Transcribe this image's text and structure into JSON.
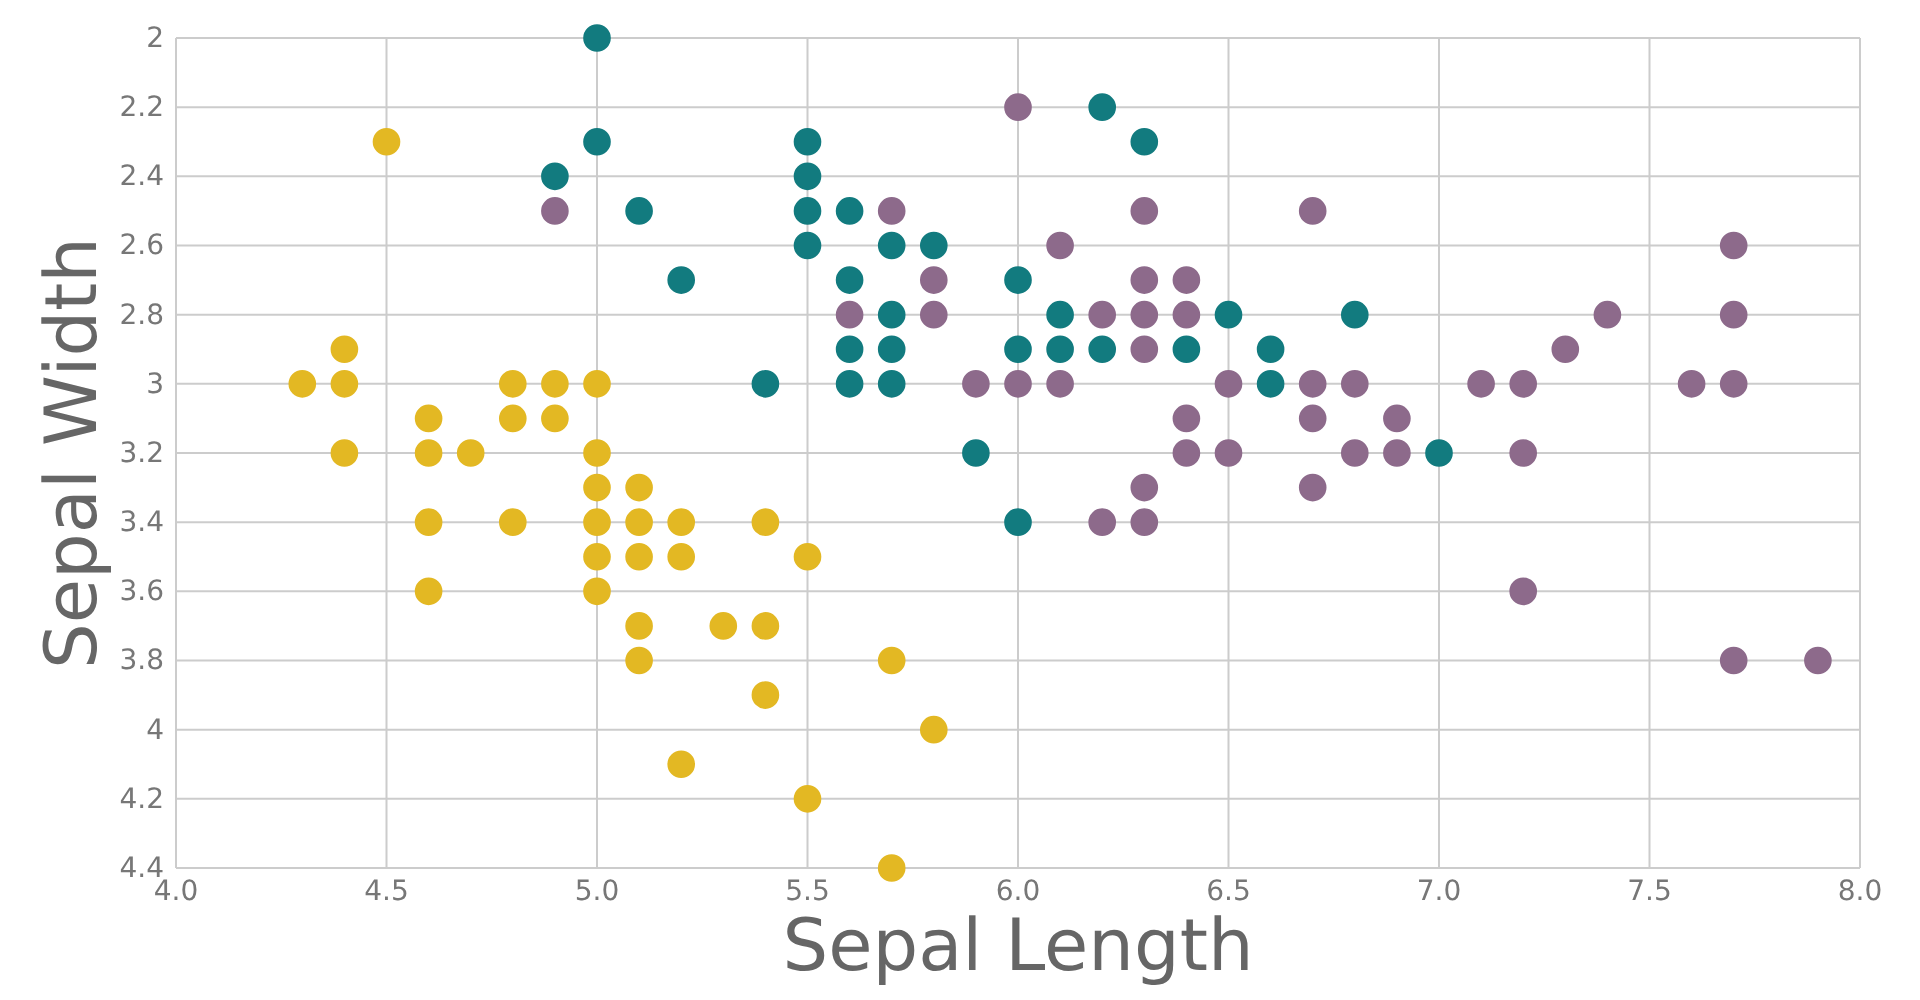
{
  "chart_data": {
    "type": "scatter",
    "xlabel": "Sepal Length",
    "ylabel": "Sepal Width",
    "xlim": [
      4.0,
      8.0
    ],
    "ylim": [
      4.4,
      2
    ],
    "xticks": [
      {
        "value": 4,
        "label": "4.0"
      },
      4.5,
      {
        "value": 5,
        "label": "5.0"
      },
      5.5,
      {
        "value": 6,
        "label": "6.0"
      },
      6.5,
      {
        "value": 7,
        "label": "7.0"
      },
      7.5,
      {
        "value": 8,
        "label": "8.0"
      }
    ],
    "yticks": [
      2,
      2.2,
      2.4,
      2.6,
      2.8,
      3,
      3.2,
      3.4,
      3.6,
      3.8,
      4,
      4.2,
      4.4
    ],
    "grid": true,
    "marker": "circle",
    "series": [
      {
        "color": "#e3b823",
        "x": [
          5.1,
          4.9,
          4.7,
          4.6,
          5.0,
          5.4,
          4.6,
          5.0,
          4.4,
          4.9,
          5.4,
          4.8,
          4.8,
          4.3,
          5.8,
          5.7,
          5.7,
          5.1,
          5.4,
          5.1,
          4.6,
          5.1,
          5.0,
          5.2,
          5.2,
          4.8,
          5.2,
          5.5,
          5.0,
          5.5,
          4.4,
          5.1,
          5.0,
          4.5,
          4.4,
          4.6,
          5.3,
          5.0
        ],
        "values": [
          3.5,
          3.0,
          3.2,
          3.1,
          3.6,
          3.9,
          3.4,
          3.4,
          2.9,
          3.1,
          3.7,
          3.4,
          3.0,
          3.0,
          4.0,
          4.4,
          3.8,
          3.8,
          3.4,
          3.7,
          3.6,
          3.3,
          3.0,
          3.5,
          3.4,
          3.1,
          4.1,
          4.2,
          3.2,
          3.5,
          3.0,
          3.4,
          3.5,
          2.3,
          3.2,
          3.2,
          3.7,
          3.3
        ]
      },
      {
        "color": "#127b7f",
        "x": [
          6.2,
          7.0,
          5.5,
          6.5,
          5.7,
          4.9,
          6.6,
          5.2,
          5.0,
          6.1,
          5.6,
          5.6,
          5.6,
          5.9,
          6.1,
          6.4,
          6.6,
          6.8,
          6.0,
          5.7,
          5.5,
          6.0,
          5.4,
          6.0,
          6.3,
          5.5,
          5.5,
          5.8,
          5.0,
          5.6,
          5.7,
          5.7,
          6.2,
          5.1
        ],
        "values": [
          2.2,
          3.2,
          2.3,
          2.8,
          2.8,
          2.4,
          2.9,
          2.7,
          2.0,
          2.9,
          2.9,
          3.0,
          2.5,
          3.2,
          2.8,
          2.9,
          3.0,
          2.8,
          2.9,
          2.6,
          2.4,
          2.7,
          3.0,
          3.4,
          2.3,
          2.5,
          2.6,
          2.6,
          2.3,
          2.7,
          3.0,
          2.9,
          2.9,
          2.5
        ]
      },
      {
        "color": "#8d6a8b",
        "x": [
          6.3,
          5.8,
          7.1,
          6.3,
          6.5,
          7.6,
          4.9,
          7.3,
          6.7,
          7.2,
          6.5,
          6.4,
          6.8,
          5.7,
          5.8,
          6.4,
          7.7,
          7.7,
          6.0,
          6.9,
          5.6,
          7.7,
          6.3,
          6.7,
          7.2,
          6.2,
          6.1,
          6.4,
          7.2,
          7.4,
          7.9,
          6.3,
          6.1,
          7.7,
          6.3,
          6.4,
          6.0,
          6.9,
          6.7,
          6.8,
          6.7,
          6.3,
          6.2,
          5.9
        ],
        "values": [
          3.3,
          2.7,
          3.0,
          2.9,
          3.0,
          3.0,
          2.5,
          2.9,
          2.5,
          3.6,
          3.2,
          2.7,
          3.0,
          2.5,
          2.8,
          3.2,
          3.8,
          2.6,
          2.2,
          3.2,
          2.8,
          2.8,
          2.7,
          3.3,
          3.2,
          2.8,
          3.0,
          2.8,
          3.0,
          2.8,
          3.8,
          2.8,
          2.6,
          3.0,
          3.4,
          3.1,
          3.0,
          3.1,
          3.1,
          3.2,
          3.0,
          2.5,
          3.4,
          3.0
        ]
      }
    ]
  }
}
